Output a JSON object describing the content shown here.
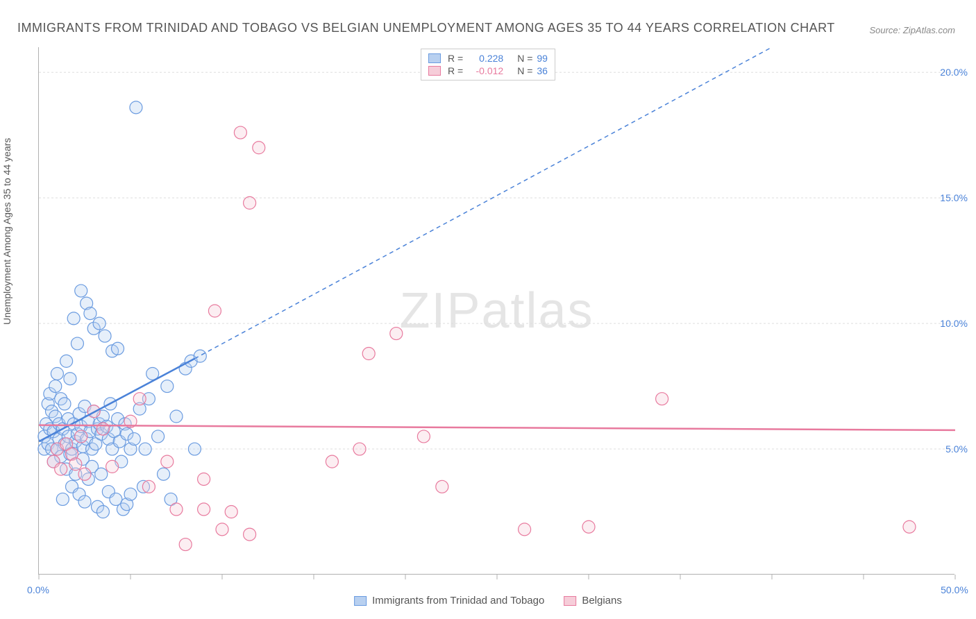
{
  "title": "IMMIGRANTS FROM TRINIDAD AND TOBAGO VS BELGIAN UNEMPLOYMENT AMONG AGES 35 TO 44 YEARS CORRELATION CHART",
  "source": "Source: ZipAtlas.com",
  "y_axis_label": "Unemployment Among Ages 35 to 44 years",
  "watermark": "ZIPatlas",
  "chart": {
    "type": "scatter-correlation",
    "background_color": "#ffffff",
    "grid_color": "#dddddd",
    "axis_color": "#b0b0b0",
    "tick_label_color": "#4a82d8",
    "xlim": [
      0,
      50
    ],
    "ylim": [
      0,
      21
    ],
    "x_tick_positions": [
      0,
      5,
      10,
      15,
      20,
      25,
      30,
      35,
      40,
      45,
      50
    ],
    "x_tick_labels": {
      "0": "0.0%",
      "50": "50.0%"
    },
    "y_gridlines": [
      5,
      10,
      15,
      20
    ],
    "y_tick_labels": {
      "5": "5.0%",
      "10": "10.0%",
      "15": "15.0%",
      "20": "20.0%"
    },
    "marker_radius": 9,
    "marker_fill_opacity": 0.35,
    "marker_stroke_width": 1.2,
    "line_width_solid": 2.5,
    "line_width_dashed": 1.5,
    "dash_pattern": "6,5"
  },
  "legend_top": {
    "r_label": "R =",
    "n_label": "N =",
    "rows": [
      {
        "swatch_fill": "#b8d0f0",
        "swatch_stroke": "#6a9be0",
        "r_value": "0.228",
        "r_color": "#4a82d8",
        "n_value": "99",
        "n_color": "#4a82d8"
      },
      {
        "swatch_fill": "#f6cdd9",
        "swatch_stroke": "#e87a9e",
        "r_value": "-0.012",
        "r_color": "#e87a9e",
        "n_value": "36",
        "n_color": "#4a82d8"
      }
    ]
  },
  "legend_bottom": {
    "items": [
      {
        "swatch_fill": "#b8d0f0",
        "swatch_stroke": "#6a9be0",
        "label": "Immigrants from Trinidad and Tobago"
      },
      {
        "swatch_fill": "#f6cdd9",
        "swatch_stroke": "#e87a9e",
        "label": "Belgians"
      }
    ]
  },
  "series": [
    {
      "name": "trinidad",
      "color_fill": "#b8d0f0",
      "color_stroke": "#6a9be0",
      "trend_color": "#4a82d8",
      "trend_solid": {
        "x1": 0,
        "y1": 5.3,
        "x2": 8.5,
        "y2": 8.6
      },
      "trend_dashed": {
        "x1": 8.5,
        "y1": 8.6,
        "x2": 40,
        "y2": 21.0
      },
      "points": [
        [
          0.3,
          5.0
        ],
        [
          0.3,
          5.5
        ],
        [
          0.4,
          6.0
        ],
        [
          0.5,
          5.2
        ],
        [
          0.5,
          6.8
        ],
        [
          0.6,
          7.2
        ],
        [
          0.6,
          5.8
        ],
        [
          0.7,
          5.0
        ],
        [
          0.7,
          6.5
        ],
        [
          0.8,
          4.5
        ],
        [
          0.8,
          5.7
        ],
        [
          0.9,
          6.3
        ],
        [
          0.9,
          7.5
        ],
        [
          1.0,
          5.0
        ],
        [
          1.0,
          8.0
        ],
        [
          1.1,
          5.4
        ],
        [
          1.1,
          6.0
        ],
        [
          1.2,
          4.7
        ],
        [
          1.2,
          7.0
        ],
        [
          1.3,
          5.8
        ],
        [
          1.3,
          3.0
        ],
        [
          1.4,
          5.2
        ],
        [
          1.4,
          6.8
        ],
        [
          1.5,
          4.2
        ],
        [
          1.5,
          8.5
        ],
        [
          1.6,
          5.5
        ],
        [
          1.6,
          6.2
        ],
        [
          1.7,
          4.8
        ],
        [
          1.7,
          7.8
        ],
        [
          1.8,
          5.0
        ],
        [
          1.8,
          3.5
        ],
        [
          1.9,
          6.0
        ],
        [
          1.9,
          10.2
        ],
        [
          2.0,
          5.3
        ],
        [
          2.0,
          4.0
        ],
        [
          2.1,
          9.2
        ],
        [
          2.1,
          5.6
        ],
        [
          2.2,
          6.4
        ],
        [
          2.2,
          3.2
        ],
        [
          2.3,
          5.9
        ],
        [
          2.3,
          11.3
        ],
        [
          2.4,
          5.1
        ],
        [
          2.4,
          4.6
        ],
        [
          2.5,
          6.7
        ],
        [
          2.5,
          2.9
        ],
        [
          2.6,
          10.8
        ],
        [
          2.6,
          5.4
        ],
        [
          2.7,
          6.1
        ],
        [
          2.7,
          3.8
        ],
        [
          2.8,
          5.7
        ],
        [
          2.8,
          10.4
        ],
        [
          2.9,
          5.0
        ],
        [
          2.9,
          4.3
        ],
        [
          3.0,
          6.5
        ],
        [
          3.0,
          9.8
        ],
        [
          3.1,
          5.2
        ],
        [
          3.2,
          5.8
        ],
        [
          3.2,
          2.7
        ],
        [
          3.3,
          6.0
        ],
        [
          3.3,
          10.0
        ],
        [
          3.4,
          5.6
        ],
        [
          3.4,
          4.0
        ],
        [
          3.5,
          6.3
        ],
        [
          3.5,
          2.5
        ],
        [
          3.6,
          9.5
        ],
        [
          3.7,
          5.9
        ],
        [
          3.8,
          3.3
        ],
        [
          3.8,
          5.4
        ],
        [
          3.9,
          6.8
        ],
        [
          4.0,
          5.0
        ],
        [
          4.0,
          8.9
        ],
        [
          4.1,
          5.7
        ],
        [
          4.2,
          3.0
        ],
        [
          4.3,
          6.2
        ],
        [
          4.3,
          9.0
        ],
        [
          4.4,
          5.3
        ],
        [
          4.5,
          4.5
        ],
        [
          4.6,
          2.6
        ],
        [
          4.7,
          6.0
        ],
        [
          4.8,
          5.6
        ],
        [
          4.8,
          2.8
        ],
        [
          5.0,
          5.0
        ],
        [
          5.0,
          3.2
        ],
        [
          5.2,
          5.4
        ],
        [
          5.3,
          18.6
        ],
        [
          5.5,
          6.6
        ],
        [
          5.7,
          3.5
        ],
        [
          5.8,
          5.0
        ],
        [
          6.0,
          7.0
        ],
        [
          6.2,
          8.0
        ],
        [
          6.5,
          5.5
        ],
        [
          6.8,
          4.0
        ],
        [
          7.0,
          7.5
        ],
        [
          7.2,
          3.0
        ],
        [
          7.5,
          6.3
        ],
        [
          8.0,
          8.2
        ],
        [
          8.3,
          8.5
        ],
        [
          8.5,
          5.0
        ],
        [
          8.8,
          8.7
        ]
      ]
    },
    {
      "name": "belgians",
      "color_fill": "#f6cdd9",
      "color_stroke": "#e87a9e",
      "trend_color": "#e87a9e",
      "trend_solid": {
        "x1": 0,
        "y1": 5.95,
        "x2": 50,
        "y2": 5.75
      },
      "trend_dashed": null,
      "points": [
        [
          0.8,
          4.5
        ],
        [
          1.0,
          5.0
        ],
        [
          1.2,
          4.2
        ],
        [
          1.5,
          5.2
        ],
        [
          1.8,
          4.8
        ],
        [
          2.0,
          4.4
        ],
        [
          2.3,
          5.5
        ],
        [
          2.5,
          4.0
        ],
        [
          3.0,
          6.5
        ],
        [
          3.5,
          5.8
        ],
        [
          4.0,
          4.3
        ],
        [
          5.0,
          6.1
        ],
        [
          5.5,
          7.0
        ],
        [
          6.0,
          3.5
        ],
        [
          7.0,
          4.5
        ],
        [
          7.5,
          2.6
        ],
        [
          8.0,
          1.2
        ],
        [
          9.0,
          2.6
        ],
        [
          9.0,
          3.8
        ],
        [
          9.6,
          10.5
        ],
        [
          10.0,
          1.8
        ],
        [
          10.5,
          2.5
        ],
        [
          11.0,
          17.6
        ],
        [
          11.5,
          14.8
        ],
        [
          11.5,
          1.6
        ],
        [
          12.0,
          17.0
        ],
        [
          16.0,
          4.5
        ],
        [
          17.5,
          5.0
        ],
        [
          18.0,
          8.8
        ],
        [
          19.5,
          9.6
        ],
        [
          21.0,
          5.5
        ],
        [
          22.0,
          3.5
        ],
        [
          26.5,
          1.8
        ],
        [
          30.0,
          1.9
        ],
        [
          34.0,
          7.0
        ],
        [
          47.5,
          1.9
        ]
      ]
    }
  ]
}
